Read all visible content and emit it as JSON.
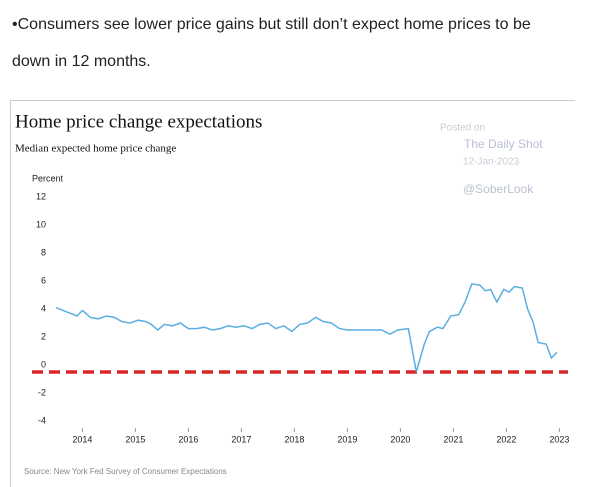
{
  "bullet_lines": [
    "Consumers see lower price gains but still don’t expect home prices to be",
    "down in 12 months."
  ],
  "chart_data": {
    "type": "line",
    "title": "Home price change expectations",
    "subtitle": "Median expected home price change",
    "y_label": "Percent",
    "watermark": [
      "Posted on",
      "The Daily Shot",
      "12-Jan-2023",
      "@SoberLook"
    ],
    "source": "Source: New York Fed Survey of Consumer Expectations",
    "color": "#5aaee0",
    "x": [
      2013.5,
      2013.7,
      2013.9,
      2014.0,
      2014.15,
      2014.3,
      2014.45,
      2014.6,
      2014.75,
      2014.9,
      2015.05,
      2015.2,
      2015.3,
      2015.42,
      2015.55,
      2015.7,
      2015.85,
      2016.0,
      2016.15,
      2016.3,
      2016.45,
      2016.6,
      2016.75,
      2016.9,
      2017.05,
      2017.2,
      2017.35,
      2017.5,
      2017.65,
      2017.8,
      2017.95,
      2018.1,
      2018.25,
      2018.4,
      2018.55,
      2018.7,
      2018.85,
      2019.0,
      2019.5,
      2019.65,
      2019.8,
      2019.95,
      2020.15,
      2020.3,
      2020.45,
      2020.55,
      2020.7,
      2020.8,
      2020.95,
      2021.1,
      2021.22,
      2021.35,
      2021.5,
      2021.6,
      2021.7,
      2021.82,
      2021.95,
      2022.05,
      2022.15,
      2022.3,
      2022.4,
      2022.5,
      2022.6,
      2022.75,
      2022.85,
      2022.95
    ],
    "values": [
      4.6,
      4.3,
      4.0,
      4.4,
      3.9,
      3.8,
      4.0,
      3.9,
      3.6,
      3.5,
      3.7,
      3.6,
      3.4,
      3.0,
      3.4,
      3.3,
      3.5,
      3.1,
      3.1,
      3.2,
      3.0,
      3.1,
      3.3,
      3.2,
      3.3,
      3.1,
      3.4,
      3.5,
      3.1,
      3.3,
      2.9,
      3.4,
      3.5,
      3.9,
      3.6,
      3.5,
      3.1,
      3.0,
      3.0,
      3.0,
      2.7,
      3.0,
      3.1,
      0.0,
      2.0,
      2.9,
      3.2,
      3.1,
      4.0,
      4.1,
      5.0,
      6.3,
      6.2,
      5.8,
      5.9,
      5.0,
      5.9,
      5.7,
      6.1,
      6.0,
      4.5,
      3.6,
      2.1,
      2.0,
      1.0,
      1.4
    ],
    "xlim": [
      2013.2,
      2023.2
    ],
    "xticks": [
      2014,
      2015,
      2016,
      2017,
      2018,
      2019,
      2020,
      2021,
      2022,
      2023
    ],
    "ylim": [
      -4,
      12
    ],
    "yticks": [
      12,
      10,
      8,
      6,
      4,
      2,
      0,
      -2,
      -4
    ],
    "reference_line": {
      "value": 0,
      "color": "#d9262b"
    },
    "grid": false
  }
}
